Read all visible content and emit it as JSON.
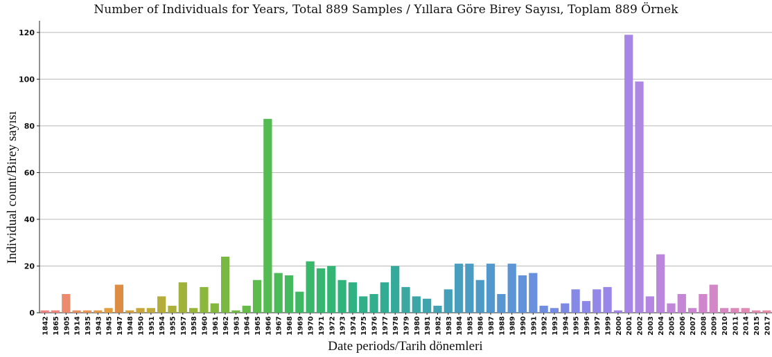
{
  "chart_data": {
    "type": "bar",
    "title": "Number of Individuals for Years, Total 889 Samples / Yıllara Göre Birey Sayısı, Toplam 889 Örnek",
    "xlabel": "Date periods/Tarih dönemleri",
    "ylabel": "Individual count/Birey sayısı",
    "ylim": [
      0,
      125
    ],
    "yticks": [
      0,
      20,
      40,
      60,
      80,
      100,
      120
    ],
    "grid": true,
    "categories": [
      "1842",
      "1865",
      "1905",
      "1914",
      "1935",
      "1943",
      "1945",
      "1947",
      "1948",
      "1950",
      "1951",
      "1954",
      "1955",
      "1957",
      "1958",
      "1960",
      "1961",
      "1962",
      "1963",
      "1964",
      "1965",
      "1966",
      "1967",
      "1968",
      "1969",
      "1970",
      "1971",
      "1972",
      "1973",
      "1974",
      "1975",
      "1976",
      "1977",
      "1978",
      "1979",
      "1980",
      "1981",
      "1982",
      "1983",
      "1984",
      "1985",
      "1986",
      "1987",
      "1988",
      "1989",
      "1990",
      "1991",
      "1992",
      "1993",
      "1994",
      "1995",
      "1996",
      "1997",
      "1999",
      "2000",
      "2001",
      "2002",
      "2003",
      "2004",
      "2005",
      "2006",
      "2007",
      "2008",
      "2009",
      "2010",
      "2011",
      "2014",
      "2015",
      "2017"
    ],
    "values": [
      1,
      1,
      8,
      1,
      1,
      1,
      2,
      12,
      1,
      2,
      2,
      7,
      3,
      13,
      2,
      11,
      4,
      24,
      1,
      3,
      14,
      83,
      17,
      16,
      9,
      22,
      19,
      20,
      14,
      13,
      7,
      8,
      13,
      20,
      11,
      7,
      6,
      3,
      10,
      21,
      21,
      14,
      21,
      8,
      21,
      16,
      17,
      3,
      2,
      4,
      10,
      5,
      10,
      11,
      1,
      119,
      99,
      7,
      25,
      4,
      8,
      2,
      8,
      12,
      2,
      2,
      2,
      1,
      1
    ],
    "colors": [
      "#f08080",
      "#f0857a",
      "#ec8a6e",
      "#e99062",
      "#e69556",
      "#e49a4a",
      "#e19f40",
      "#dc8d43",
      "#d3a23f",
      "#c9a63c",
      "#bfaa3b",
      "#b5ad3a",
      "#abb03a",
      "#a1b23a",
      "#97b43b",
      "#8db63c",
      "#83b73e",
      "#79b841",
      "#6fb944",
      "#66ba48",
      "#5dba4d",
      "#54ba52",
      "#4cba58",
      "#45b95e",
      "#3fb864",
      "#3ab76a",
      "#36b670",
      "#33b576",
      "#31b37c",
      "#30b282",
      "#30b088",
      "#31ae8e",
      "#33ac94",
      "#36aa9a",
      "#39a8a0",
      "#3ca6a6",
      "#3fa4ac",
      "#42a2b2",
      "#44a0b8",
      "#479ebd",
      "#4a9cc2",
      "#4e9ac7",
      "#5298cc",
      "#5796d1",
      "#5c94d5",
      "#6292d9",
      "#6890dc",
      "#6f8edf",
      "#768ce2",
      "#7d8ae4",
      "#8589e6",
      "#8c88e7",
      "#9387e8",
      "#9a86e8",
      "#a186e7",
      "#a886e6",
      "#ae86e4",
      "#b486e1",
      "#ba86de",
      "#c086da",
      "#c586d6",
      "#ca86d1",
      "#cf86cc",
      "#d487c6",
      "#d888c0",
      "#dc89ba",
      "#e08ab4",
      "#e38bae",
      "#e68ca8"
    ]
  }
}
